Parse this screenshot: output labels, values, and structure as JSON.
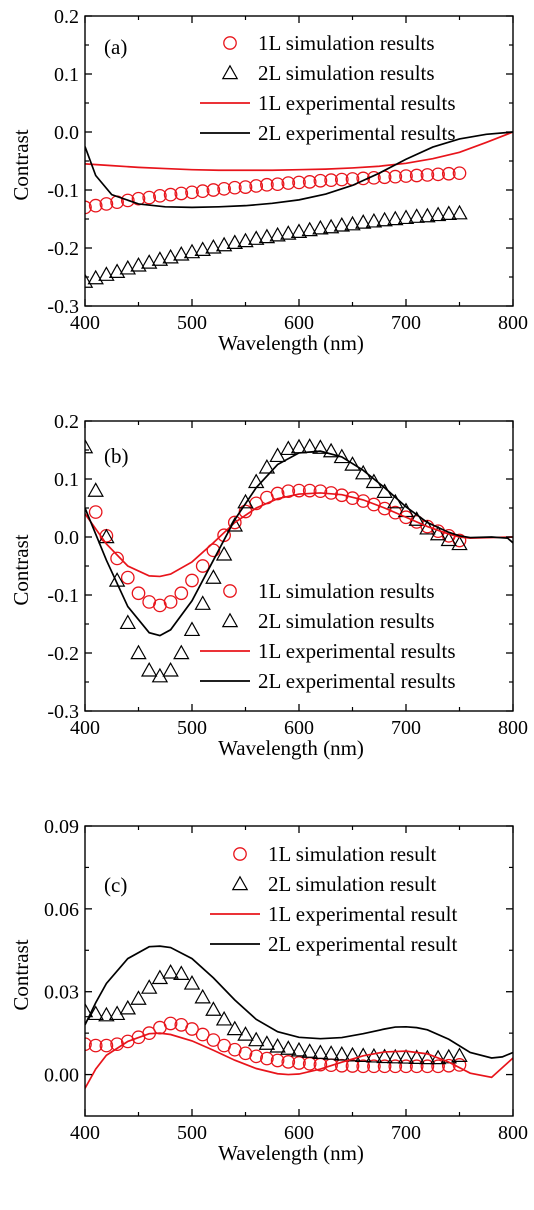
{
  "chart_data": [
    {
      "type": "line",
      "panel": "(a)",
      "xlabel": "Wavelength (nm)",
      "ylabel": "Contrast",
      "xlim": [
        400,
        800
      ],
      "ylim": [
        -0.3,
        0.2
      ],
      "xticks": [
        400,
        500,
        600,
        700,
        800
      ],
      "yticks": [
        -0.3,
        -0.2,
        -0.1,
        0.0,
        0.1,
        0.2
      ],
      "ytick_labels": [
        "-0.3",
        "-0.2",
        "-0.1",
        "0.0",
        "0.1",
        "0.2"
      ],
      "grid": false,
      "legend_position": "top-right",
      "series": [
        {
          "name": "1L simulation results",
          "kind": "circle",
          "color": "#e8141b",
          "x": [
            400,
            410,
            420,
            430,
            440,
            450,
            460,
            470,
            480,
            490,
            500,
            510,
            520,
            530,
            540,
            550,
            560,
            570,
            580,
            590,
            600,
            610,
            620,
            630,
            640,
            650,
            660,
            670,
            680,
            690,
            700,
            710,
            720,
            730,
            740,
            750
          ],
          "y": [
            -0.13,
            -0.127,
            -0.124,
            -0.121,
            -0.118,
            -0.115,
            -0.113,
            -0.11,
            -0.108,
            -0.106,
            -0.104,
            -0.102,
            -0.1,
            -0.098,
            -0.096,
            -0.095,
            -0.093,
            -0.091,
            -0.09,
            -0.088,
            -0.087,
            -0.086,
            -0.084,
            -0.083,
            -0.082,
            -0.081,
            -0.08,
            -0.079,
            -0.078,
            -0.077,
            -0.076,
            -0.075,
            -0.074,
            -0.073,
            -0.072,
            -0.071
          ]
        },
        {
          "name": "2L simulation results",
          "kind": "triangle",
          "color": "#000000",
          "x": [
            400,
            410,
            420,
            430,
            440,
            450,
            460,
            470,
            480,
            490,
            500,
            510,
            520,
            530,
            540,
            550,
            560,
            570,
            580,
            590,
            600,
            610,
            620,
            630,
            640,
            650,
            660,
            670,
            680,
            690,
            700,
            710,
            720,
            730,
            740,
            750
          ],
          "y": [
            -0.258,
            -0.252,
            -0.246,
            -0.241,
            -0.235,
            -0.23,
            -0.225,
            -0.22,
            -0.216,
            -0.211,
            -0.207,
            -0.203,
            -0.199,
            -0.195,
            -0.191,
            -0.188,
            -0.184,
            -0.181,
            -0.178,
            -0.175,
            -0.172,
            -0.169,
            -0.166,
            -0.164,
            -0.161,
            -0.159,
            -0.156,
            -0.154,
            -0.152,
            -0.15,
            -0.148,
            -0.146,
            -0.145,
            -0.143,
            -0.141,
            -0.14
          ]
        },
        {
          "name": "1L experimental results",
          "kind": "line",
          "color": "#e8141b",
          "x": [
            400,
            425,
            450,
            475,
            500,
            525,
            550,
            575,
            600,
            625,
            650,
            675,
            700,
            725,
            750,
            775,
            800
          ],
          "y": [
            -0.055,
            -0.058,
            -0.061,
            -0.063,
            -0.065,
            -0.066,
            -0.066,
            -0.066,
            -0.065,
            -0.064,
            -0.062,
            -0.059,
            -0.054,
            -0.046,
            -0.035,
            -0.018,
            0.0
          ]
        },
        {
          "name": "2L experimental results",
          "kind": "line",
          "color": "#000000",
          "x": [
            400,
            410,
            425,
            450,
            475,
            500,
            525,
            550,
            575,
            600,
            625,
            650,
            675,
            700,
            725,
            750,
            775,
            800
          ],
          "y": [
            -0.025,
            -0.075,
            -0.108,
            -0.124,
            -0.129,
            -0.13,
            -0.129,
            -0.127,
            -0.123,
            -0.117,
            -0.107,
            -0.092,
            -0.071,
            -0.047,
            -0.026,
            -0.012,
            -0.004,
            0.0
          ]
        }
      ]
    },
    {
      "type": "line",
      "panel": "(b)",
      "xlabel": "Wavelength (nm)",
      "ylabel": "Contrast",
      "xlim": [
        400,
        800
      ],
      "ylim": [
        -0.3,
        0.2
      ],
      "xticks": [
        400,
        500,
        600,
        700,
        800
      ],
      "yticks": [
        -0.3,
        -0.2,
        -0.1,
        0.0,
        0.1,
        0.2
      ],
      "ytick_labels": [
        "-0.3",
        "-0.2",
        "-0.1",
        "0.0",
        "0.1",
        "0.2"
      ],
      "grid": false,
      "legend_position": "bottom-right",
      "series": [
        {
          "name": "1L simulation results",
          "kind": "circle",
          "color": "#e8141b",
          "x": [
            410,
            420,
            430,
            440,
            450,
            460,
            470,
            480,
            490,
            500,
            510,
            520,
            530,
            540,
            550,
            560,
            570,
            580,
            590,
            600,
            610,
            620,
            630,
            640,
            650,
            660,
            670,
            680,
            690,
            700,
            710,
            720,
            730,
            740,
            750
          ],
          "y": [
            0.043,
            0.002,
            -0.037,
            -0.07,
            -0.097,
            -0.112,
            -0.118,
            -0.112,
            -0.097,
            -0.075,
            -0.05,
            -0.023,
            0.003,
            0.025,
            0.044,
            0.058,
            0.068,
            0.075,
            0.079,
            0.08,
            0.08,
            0.079,
            0.076,
            0.072,
            0.067,
            0.062,
            0.056,
            0.049,
            0.042,
            0.034,
            0.026,
            0.018,
            0.01,
            0.002,
            -0.006
          ]
        },
        {
          "name": "2L simulation results",
          "kind": "triangle",
          "color": "#000000",
          "x": [
            400,
            410,
            420,
            430,
            440,
            450,
            460,
            470,
            480,
            490,
            500,
            510,
            520,
            530,
            540,
            550,
            560,
            570,
            580,
            590,
            600,
            610,
            620,
            630,
            640,
            650,
            660,
            670,
            680,
            690,
            700,
            710,
            720,
            730,
            740,
            750
          ],
          "y": [
            0.155,
            0.08,
            0.0,
            -0.075,
            -0.148,
            -0.2,
            -0.23,
            -0.24,
            -0.23,
            -0.2,
            -0.16,
            -0.115,
            -0.07,
            -0.03,
            0.02,
            0.06,
            0.095,
            0.12,
            0.14,
            0.152,
            0.155,
            0.156,
            0.154,
            0.148,
            0.138,
            0.125,
            0.11,
            0.095,
            0.078,
            0.06,
            0.045,
            0.03,
            0.015,
            0.005,
            -0.005,
            -0.012
          ]
        },
        {
          "name": "1L experimental results",
          "kind": "line",
          "color": "#e8141b",
          "x": [
            400,
            420,
            440,
            460,
            470,
            480,
            500,
            520,
            540,
            560,
            580,
            600,
            620,
            640,
            660,
            680,
            700,
            720,
            740,
            750,
            760,
            780,
            800
          ],
          "y": [
            0.04,
            -0.012,
            -0.05,
            -0.067,
            -0.068,
            -0.064,
            -0.043,
            -0.01,
            0.025,
            0.05,
            0.066,
            0.074,
            0.076,
            0.073,
            0.064,
            0.05,
            0.034,
            0.018,
            0.005,
            0.0,
            -0.002,
            -0.001,
            0.0
          ]
        },
        {
          "name": "2L experimental results",
          "kind": "line",
          "color": "#000000",
          "x": [
            400,
            420,
            440,
            460,
            470,
            480,
            500,
            520,
            540,
            560,
            580,
            600,
            620,
            640,
            660,
            680,
            700,
            720,
            740,
            750,
            760,
            780,
            795,
            800
          ],
          "y": [
            0.05,
            -0.04,
            -0.12,
            -0.165,
            -0.17,
            -0.16,
            -0.11,
            -0.04,
            0.03,
            0.085,
            0.125,
            0.145,
            0.148,
            0.138,
            0.115,
            0.085,
            0.052,
            0.025,
            0.008,
            0.002,
            -0.001,
            0.0,
            -0.002,
            -0.01
          ]
        }
      ]
    },
    {
      "type": "line",
      "panel": "(c)",
      "xlabel": "Wavelength (nm)",
      "ylabel": "Contrast",
      "xlim": [
        400,
        800
      ],
      "ylim": [
        -0.015,
        0.09
      ],
      "xticks": [
        400,
        500,
        600,
        700,
        800
      ],
      "yticks": [
        0.0,
        0.03,
        0.06,
        0.09
      ],
      "ytick_labels": [
        "0.00",
        "0.03",
        "0.06",
        "0.09"
      ],
      "grid": false,
      "legend_position": "top-right",
      "series": [
        {
          "name": "1L simulation result",
          "kind": "circle",
          "color": "#e8141b",
          "x": [
            400,
            410,
            420,
            430,
            440,
            450,
            460,
            470,
            480,
            490,
            500,
            510,
            520,
            530,
            540,
            550,
            560,
            570,
            580,
            590,
            600,
            610,
            620,
            630,
            640,
            650,
            660,
            670,
            680,
            690,
            700,
            710,
            720,
            730,
            740,
            750
          ],
          "y": [
            0.011,
            0.0105,
            0.0105,
            0.011,
            0.012,
            0.0135,
            0.015,
            0.017,
            0.0185,
            0.018,
            0.0165,
            0.0145,
            0.0125,
            0.0105,
            0.009,
            0.0077,
            0.0066,
            0.0058,
            0.0051,
            0.0046,
            0.0042,
            0.0039,
            0.0036,
            0.0034,
            0.0032,
            0.0031,
            0.003,
            0.003,
            0.003,
            0.003,
            0.003,
            0.003,
            0.003,
            0.003,
            0.0032,
            0.0035
          ]
        },
        {
          "name": "2L simulation result",
          "kind": "triangle",
          "color": "#000000",
          "x": [
            400,
            410,
            420,
            430,
            440,
            450,
            460,
            470,
            480,
            490,
            500,
            510,
            520,
            530,
            540,
            550,
            560,
            570,
            580,
            590,
            600,
            610,
            620,
            630,
            640,
            650,
            660,
            670,
            680,
            690,
            700,
            710,
            720,
            730,
            740,
            750
          ],
          "y": [
            0.023,
            0.022,
            0.0215,
            0.022,
            0.024,
            0.0275,
            0.0315,
            0.035,
            0.037,
            0.0365,
            0.033,
            0.028,
            0.0235,
            0.02,
            0.0165,
            0.0145,
            0.0125,
            0.0112,
            0.0102,
            0.0094,
            0.0088,
            0.0083,
            0.0079,
            0.0076,
            0.0073,
            0.007,
            0.0068,
            0.0066,
            0.0064,
            0.0063,
            0.0062,
            0.0061,
            0.006,
            0.006,
            0.0063,
            0.0068
          ]
        },
        {
          "name": "1L experimental result",
          "kind": "line",
          "color": "#e8141b",
          "x": [
            400,
            410,
            420,
            440,
            460,
            470,
            480,
            500,
            520,
            540,
            560,
            580,
            590,
            600,
            620,
            640,
            660,
            680,
            700,
            720,
            740,
            760,
            780,
            800
          ],
          "y": [
            -0.005,
            0.002,
            0.007,
            0.012,
            0.0148,
            0.015,
            0.0145,
            0.0122,
            0.0088,
            0.0052,
            0.0022,
            0.0003,
            0.0,
            0.0002,
            0.002,
            0.0045,
            0.0068,
            0.0082,
            0.0085,
            0.0075,
            0.0045,
            0.0005,
            -0.001,
            0.006
          ]
        },
        {
          "name": "2L experimental result",
          "kind": "line",
          "color": "#000000",
          "x": [
            400,
            410,
            420,
            440,
            460,
            470,
            480,
            500,
            520,
            540,
            560,
            580,
            600,
            620,
            640,
            660,
            680,
            690,
            700,
            710,
            720,
            740,
            760,
            780,
            790,
            800
          ],
          "y": [
            0.018,
            0.026,
            0.033,
            0.042,
            0.0463,
            0.0465,
            0.046,
            0.042,
            0.035,
            0.027,
            0.02,
            0.0155,
            0.0135,
            0.013,
            0.0134,
            0.0148,
            0.0165,
            0.0172,
            0.0173,
            0.017,
            0.0162,
            0.0128,
            0.008,
            0.006,
            0.0064,
            0.008
          ]
        }
      ]
    }
  ]
}
